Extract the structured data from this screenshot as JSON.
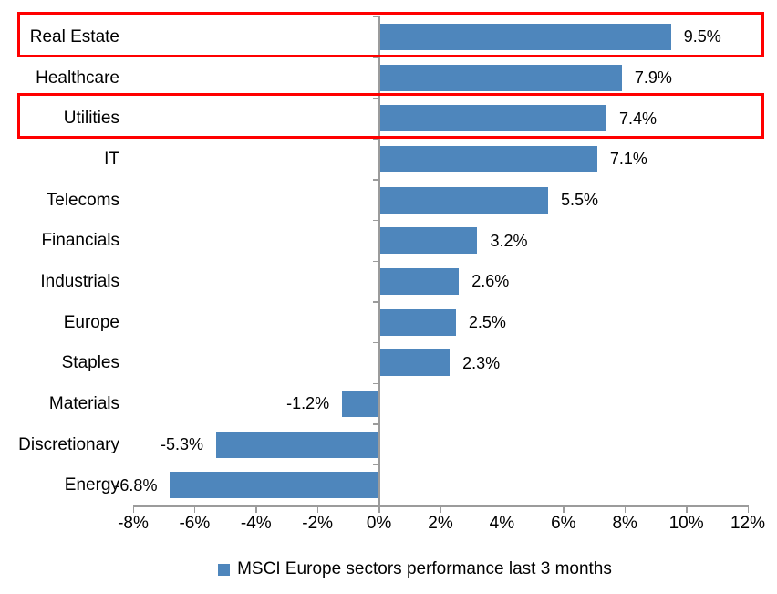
{
  "chart_data": {
    "type": "bar",
    "orientation": "horizontal",
    "categories": [
      "Real Estate",
      "Healthcare",
      "Utilities",
      "IT",
      "Telecoms",
      "Financials",
      "Industrials",
      "Europe",
      "Staples",
      "Materials",
      "Discretionary",
      "Energy"
    ],
    "values": [
      9.5,
      7.9,
      7.4,
      7.1,
      5.5,
      3.2,
      2.6,
      2.5,
      2.3,
      -1.2,
      -5.3,
      -6.8
    ],
    "data_labels": [
      "9.5%",
      "7.9%",
      "7.4%",
      "7.1%",
      "5.5%",
      "3.2%",
      "2.6%",
      "2.5%",
      "2.3%",
      "-1.2%",
      "-5.3%",
      "-6.8%"
    ],
    "x_ticks": [
      {
        "value": -8,
        "label": "-8%"
      },
      {
        "value": -6,
        "label": "-6%"
      },
      {
        "value": -4,
        "label": "-4%"
      },
      {
        "value": -2,
        "label": "-2%"
      },
      {
        "value": 0,
        "label": "0%"
      },
      {
        "value": 2,
        "label": "2%"
      },
      {
        "value": 4,
        "label": "4%"
      },
      {
        "value": 6,
        "label": "6%"
      },
      {
        "value": 8,
        "label": "8%"
      },
      {
        "value": 10,
        "label": "10%"
      },
      {
        "value": 12,
        "label": "12%"
      }
    ],
    "xlim": [
      -8,
      12
    ],
    "grid": false,
    "legend": "MSCI Europe sectors performance last 3 months",
    "legend_position": "bottom-center",
    "highlighted_categories": [
      "Real Estate",
      "Utilities"
    ],
    "colors": {
      "bar": "#4E86BC",
      "axis": "#9B9B9B",
      "highlight_box": "#FF0000",
      "text": "#000000"
    }
  }
}
